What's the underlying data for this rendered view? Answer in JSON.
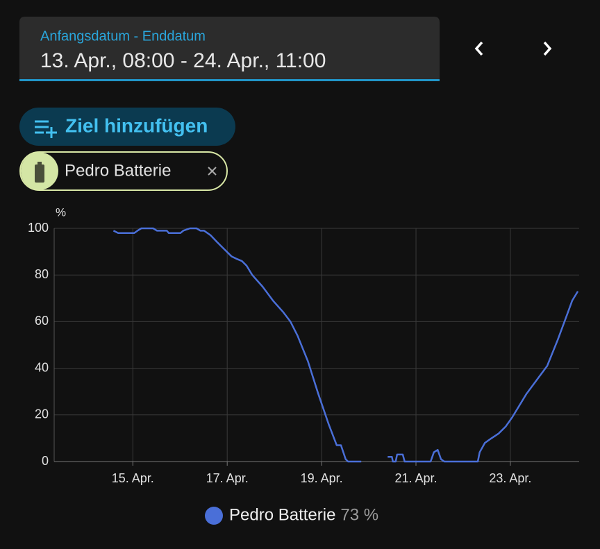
{
  "date_range": {
    "label": "Anfangsdatum - Enddatum",
    "value": "13. Apr., 08:00 - 24. Apr., 11:00"
  },
  "add_target": "Ziel hinzufügen",
  "target_chip": "Pedro Batterie",
  "chart_data": {
    "type": "line",
    "y_unit": "%",
    "x": [
      14.59,
      14.69,
      15.03,
      15.1,
      15.18,
      15.43,
      15.51,
      15.72,
      15.76,
      16.01,
      16.07,
      16.21,
      16.35,
      16.43,
      16.51,
      16.65,
      16.79,
      16.94,
      17.09,
      17.19,
      17.31,
      17.41,
      17.53,
      17.75,
      17.97,
      18.19,
      18.34,
      18.49,
      18.71,
      18.93,
      19.15,
      19.32,
      19.41,
      19.51,
      19.56,
      19.84,
      20.1,
      20.4,
      20.49,
      20.51,
      20.57,
      20.6,
      20.72,
      20.76,
      21.31,
      21.38,
      21.46,
      21.53,
      21.6,
      22.31,
      22.35,
      22.46,
      22.6,
      22.75,
      22.9,
      23.04,
      23.19,
      23.34,
      23.56,
      23.78,
      24.0,
      24.22,
      24.31,
      24.43
    ],
    "series": [
      {
        "name": "Pedro Batterie",
        "color": "#4a6fd8",
        "state": "73 %",
        "values": [
          99,
          98,
          98,
          99,
          100,
          100,
          99,
          99,
          98,
          98,
          99,
          100,
          100,
          99,
          99,
          97,
          94,
          91,
          88,
          87,
          86,
          84,
          80,
          75,
          69,
          64,
          60,
          54,
          43,
          29,
          16,
          7,
          7,
          1,
          0,
          0,
          null,
          2,
          2,
          0,
          0,
          3,
          3,
          0,
          0,
          4,
          5,
          1,
          0,
          0,
          4,
          8,
          10,
          12,
          15,
          19,
          24,
          29,
          35,
          41,
          52,
          64,
          69,
          73
        ]
      }
    ],
    "xlim": [
      13.333,
      24.458
    ],
    "xticks": [
      {
        "value": 15,
        "label": "15. Apr."
      },
      {
        "value": 17,
        "label": "17. Apr."
      },
      {
        "value": 19,
        "label": "19. Apr."
      },
      {
        "value": 21,
        "label": "21. Apr."
      },
      {
        "value": 23,
        "label": "23. Apr."
      }
    ],
    "ylim": [
      0,
      100
    ],
    "yticks": [
      0,
      20,
      40,
      60,
      80,
      100
    ],
    "grid": true
  }
}
